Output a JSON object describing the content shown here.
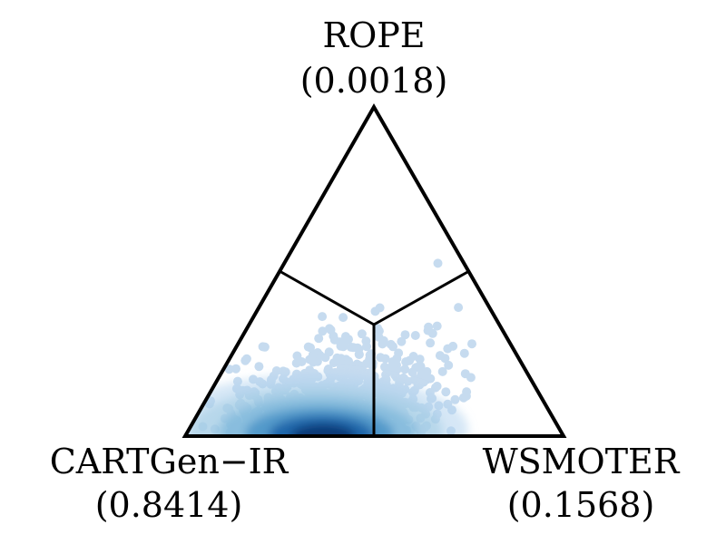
{
  "chart_data": {
    "type": "ternary-density",
    "vertices": [
      {
        "name": "ROPE",
        "probability": "(0.0018)",
        "position": "top"
      },
      {
        "name": "CARTGen−IR",
        "probability": "(0.8414)",
        "position": "bottom-left"
      },
      {
        "name": "WSMOTER",
        "probability": "(0.1568)",
        "position": "bottom-right"
      }
    ],
    "posterior_mass": {
      "ROPE": 0.0018,
      "CARTGen−IR": 0.8414,
      "WSMOTER": 0.1568
    },
    "density_peak": {
      "CARTGen−IR": 0.62,
      "WSMOTER": 0.34,
      "ROPE": 0.04
    },
    "region_boundaries": true,
    "colormap": "Blues",
    "colors": {
      "light": "#c6dbef",
      "mid": "#6baed6",
      "dark": "#08306b",
      "edge": "#000000"
    }
  }
}
